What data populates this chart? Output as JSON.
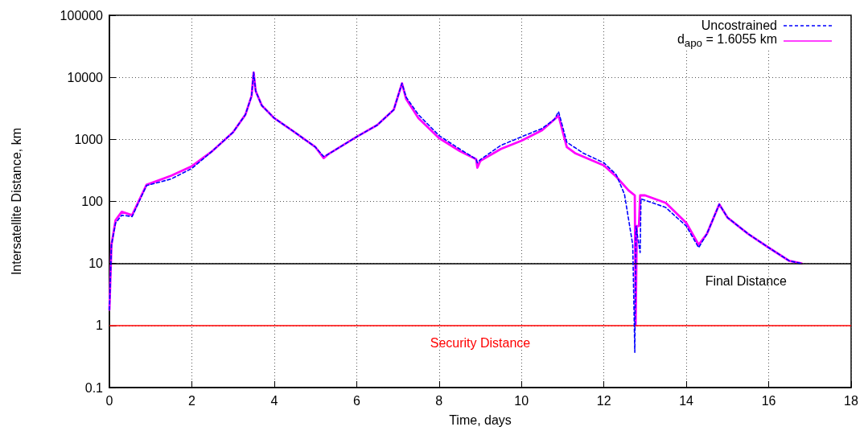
{
  "chart_data": {
    "type": "line",
    "xlabel": "Time, days",
    "ylabel": "Intersatellite Distance, km",
    "log": "y",
    "grid": true,
    "legend": "top right",
    "marker": "none",
    "xlim": [
      0,
      18
    ],
    "xticks": [
      0,
      2,
      4,
      6,
      8,
      10,
      12,
      14,
      16,
      18
    ],
    "ylim": [
      0.1,
      100000
    ],
    "yticks": [
      0.1,
      1,
      10,
      100,
      1000,
      10000,
      100000
    ],
    "series": [
      {
        "name": "Uncostrained",
        "color": "#0000ff",
        "line_style": "dashed",
        "x": [
          0,
          0.05,
          0.15,
          0.3,
          0.55,
          0.9,
          1.5,
          2,
          2.5,
          3,
          3.3,
          3.45,
          3.5,
          3.55,
          3.7,
          4,
          4.5,
          5,
          5.2,
          5.3,
          6,
          6.5,
          6.9,
          7.1,
          7.2,
          7.5,
          8,
          8.5,
          8.9,
          8.93,
          9,
          9.5,
          10,
          10.5,
          10.8,
          10.9,
          11.1,
          11.5,
          12,
          12.3,
          12.5,
          12.7,
          12.75,
          12.78,
          12.85,
          12.88,
          12.9,
          13.5,
          14,
          14.3,
          14.5,
          14.8,
          15,
          15.5,
          16,
          16.5,
          16.8
        ],
        "values": [
          1.8,
          20,
          45,
          60,
          57,
          180,
          230,
          340,
          650,
          1300,
          2500,
          5000,
          12000,
          6000,
          3500,
          2200,
          1300,
          750,
          530,
          570,
          1100,
          1700,
          3000,
          8000,
          4800,
          2500,
          1150,
          700,
          480,
          420,
          470,
          800,
          1100,
          1500,
          2100,
          2800,
          900,
          600,
          420,
          270,
          130,
          20,
          0.37,
          40,
          20,
          15,
          110,
          80,
          40,
          18,
          30,
          90,
          55,
          30,
          18,
          11,
          10
        ]
      },
      {
        "name": "d$_{apo}$ = 1.6055 km",
        "color": "#ff00ff",
        "line_style": "solid",
        "x": [
          0,
          0.05,
          0.15,
          0.3,
          0.55,
          0.9,
          1.5,
          2,
          2.5,
          3,
          3.3,
          3.45,
          3.5,
          3.55,
          3.7,
          4,
          4.5,
          5,
          5.2,
          5.3,
          6,
          6.5,
          6.9,
          7.1,
          7.2,
          7.5,
          8,
          8.5,
          8.9,
          8.93,
          9,
          9.5,
          10,
          10.5,
          10.8,
          10.9,
          11.1,
          11.3,
          12,
          12.3,
          12.6,
          12.75,
          12.77,
          12.8,
          12.85,
          12.88,
          13,
          13.5,
          14,
          14.3,
          14.5,
          14.8,
          15,
          15.5,
          16,
          16.5,
          16.8
        ],
        "values": [
          1.8,
          20,
          50,
          68,
          60,
          185,
          260,
          370,
          650,
          1300,
          2500,
          5000,
          12000,
          6000,
          3500,
          2200,
          1300,
          750,
          500,
          570,
          1100,
          1700,
          3000,
          8000,
          4500,
          2200,
          1050,
          650,
          480,
          350,
          450,
          700,
          950,
          1400,
          2100,
          2400,
          750,
          600,
          380,
          250,
          150,
          125,
          1,
          40,
          40,
          125,
          125,
          95,
          45,
          20,
          30,
          90,
          55,
          30,
          18,
          11,
          10
        ]
      }
    ],
    "ref_lines": [
      {
        "axis": "y",
        "value": 10,
        "label": "Final Distance",
        "color": "#000000"
      },
      {
        "axis": "y",
        "value": 1,
        "label": "Security Distance",
        "color": "#ff0000"
      }
    ]
  }
}
